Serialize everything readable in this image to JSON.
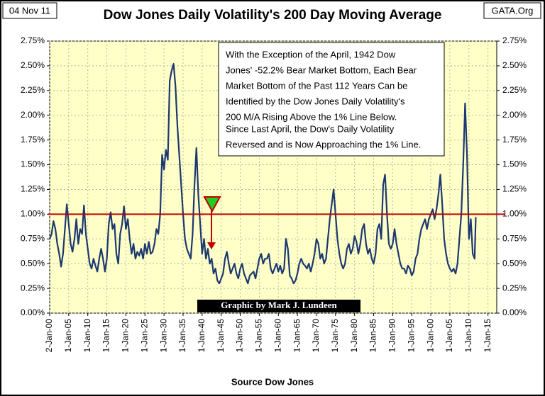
{
  "chart_data": {
    "type": "line",
    "title": "Dow Jones Daily Volatility's 200 Day Moving Average",
    "date_label": "04 Nov 11",
    "source_label": "GATA.Org",
    "x_label": "Source Dow Jones",
    "credit": "Graphic by Mark J. Lundeen",
    "annotation_lines": [
      "With the Exception of the  April, 1942 Dow",
      "Jones' -52.2% Bear Market Bottom, Each Bear",
      "Market Bottom of the Past 112 Years Can be",
      "Identified by the Dow Jones Daily Volatility's",
      "200 M/A Rising Above the 1% Line Below.",
      "Since Last April, the Dow's Daily Volatility",
      "Reversed and is Now Approaching the 1% Line."
    ],
    "color": "#1c3870",
    "reference_line": 1.0,
    "reference_color": "#c00000",
    "grid": true,
    "xlim": [
      1900,
      2017.3
    ],
    "xticks": [
      {
        "value": 1900,
        "label": "2-Jan-00"
      },
      {
        "value": 1905,
        "label": "1-Jan-05"
      },
      {
        "value": 1910,
        "label": "1-Jan-10"
      },
      {
        "value": 1915,
        "label": "1-Jan-15"
      },
      {
        "value": 1920,
        "label": "1-Jan-20"
      },
      {
        "value": 1925,
        "label": "1-Jan-25"
      },
      {
        "value": 1930,
        "label": "1-Jan-30"
      },
      {
        "value": 1935,
        "label": "1-Jan-35"
      },
      {
        "value": 1940,
        "label": "1-Jan-40"
      },
      {
        "value": 1945,
        "label": "1-Jan-45"
      },
      {
        "value": 1950,
        "label": "1-Jan-50"
      },
      {
        "value": 1955,
        "label": "1-Jan-55"
      },
      {
        "value": 1960,
        "label": "1-Jan-60"
      },
      {
        "value": 1965,
        "label": "1-Jan-65"
      },
      {
        "value": 1970,
        "label": "1-Jan-70"
      },
      {
        "value": 1975,
        "label": "1-Jan-75"
      },
      {
        "value": 1980,
        "label": "1-Jan-80"
      },
      {
        "value": 1985,
        "label": "1-Jan-85"
      },
      {
        "value": 1990,
        "label": "1-Jan-90"
      },
      {
        "value": 1995,
        "label": "1-Jan-95"
      },
      {
        "value": 2000,
        "label": "1-Jan-00"
      },
      {
        "value": 2005,
        "label": "1-Jan-05"
      },
      {
        "value": 2010,
        "label": "1-Jan-10"
      },
      {
        "value": 2015,
        "label": "1-Jan-15"
      }
    ],
    "ylim": [
      0,
      2.75
    ],
    "yticks": [
      {
        "value": 0,
        "label": "0.00%"
      },
      {
        "value": 0.25,
        "label": "0.25%"
      },
      {
        "value": 0.5,
        "label": "0.50%"
      },
      {
        "value": 0.75,
        "label": "0.75%"
      },
      {
        "value": 1.0,
        "label": "1.00%"
      },
      {
        "value": 1.25,
        "label": "1.25%"
      },
      {
        "value": 1.5,
        "label": "1.50%"
      },
      {
        "value": 1.75,
        "label": "1.75%"
      },
      {
        "value": 2.0,
        "label": "2.00%"
      },
      {
        "value": 2.25,
        "label": "2.25%"
      },
      {
        "value": 2.5,
        "label": "2.50%"
      },
      {
        "value": 2.75,
        "label": "2.75%"
      }
    ],
    "y2lim": [
      0,
      2.75
    ],
    "y2ticks": [
      {
        "value": 0,
        "label": "0.00%"
      },
      {
        "value": 0.25,
        "label": "0.25%"
      },
      {
        "value": 0.5,
        "label": "0.50%"
      },
      {
        "value": 0.75,
        "label": "0.75%"
      },
      {
        "value": 1.0,
        "label": "1.00%"
      },
      {
        "value": 1.25,
        "label": "1.25%"
      },
      {
        "value": 1.5,
        "label": "1.50%"
      },
      {
        "value": 1.75,
        "label": "1.75%"
      },
      {
        "value": 2.0,
        "label": "2.00%"
      },
      {
        "value": 2.25,
        "label": "2.25%"
      },
      {
        "value": 2.5,
        "label": "2.50%"
      },
      {
        "value": 2.75,
        "label": "2.75%"
      }
    ],
    "x": [
      1900,
      1900.5,
      1901,
      1901.5,
      1902,
      1902.5,
      1903,
      1903.5,
      1904,
      1904.5,
      1905,
      1905.5,
      1906,
      1906.5,
      1907,
      1907.5,
      1908,
      1908.5,
      1909,
      1909.5,
      1910,
      1910.5,
      1911,
      1911.5,
      1912,
      1912.5,
      1913,
      1913.5,
      1914,
      1914.5,
      1915,
      1915.5,
      1916,
      1916.5,
      1917,
      1917.5,
      1918,
      1918.5,
      1919,
      1919.5,
      1920,
      1920.5,
      1921,
      1921.5,
      1922,
      1922.5,
      1923,
      1923.5,
      1924,
      1924.5,
      1925,
      1925.5,
      1926,
      1926.5,
      1927,
      1927.5,
      1928,
      1928.5,
      1929,
      1929.5,
      1930,
      1930.5,
      1931,
      1931.5,
      1932,
      1932.5,
      1933,
      1933.5,
      1934,
      1934.5,
      1935,
      1935.5,
      1936,
      1936.5,
      1937,
      1937.5,
      1938,
      1938.5,
      1939,
      1939.5,
      1940,
      1940.5,
      1941,
      1941.5,
      1942,
      1942.5,
      1943,
      1943.5,
      1944,
      1944.5,
      1945,
      1945.5,
      1946,
      1946.5,
      1947,
      1947.5,
      1948,
      1948.5,
      1949,
      1949.5,
      1950,
      1950.5,
      1951,
      1951.5,
      1952,
      1952.5,
      1953,
      1953.5,
      1954,
      1954.5,
      1955,
      1955.5,
      1956,
      1956.5,
      1957,
      1957.5,
      1958,
      1958.5,
      1959,
      1959.5,
      1960,
      1960.5,
      1961,
      1961.5,
      1962,
      1962.5,
      1963,
      1963.5,
      1964,
      1964.5,
      1965,
      1965.5,
      1966,
      1966.5,
      1967,
      1967.5,
      1968,
      1968.5,
      1969,
      1969.5,
      1970,
      1970.5,
      1971,
      1971.5,
      1972,
      1972.5,
      1973,
      1973.5,
      1974,
      1974.5,
      1975,
      1975.5,
      1976,
      1976.5,
      1977,
      1977.5,
      1978,
      1978.5,
      1979,
      1979.5,
      1980,
      1980.5,
      1981,
      1981.5,
      1982,
      1982.5,
      1983,
      1983.5,
      1984,
      1984.5,
      1985,
      1985.5,
      1986,
      1986.5,
      1987,
      1987.5,
      1988,
      1988.5,
      1989,
      1989.5,
      1990,
      1990.5,
      1991,
      1991.5,
      1992,
      1992.5,
      1993,
      1993.5,
      1994,
      1994.5,
      1995,
      1995.5,
      1996,
      1996.5,
      1997,
      1997.5,
      1998,
      1998.5,
      1999,
      1999.5,
      2000,
      2000.5,
      2001,
      2001.5,
      2002,
      2002.5,
      2003,
      2003.5,
      2004,
      2004.5,
      2005,
      2005.5,
      2006,
      2006.5,
      2007,
      2007.5,
      2008,
      2008.5,
      2009,
      2009.5,
      2010,
      2010.5,
      2011,
      2011.5,
      2011.8
    ],
    "values": [
      0.75,
      0.8,
      0.93,
      0.85,
      0.7,
      0.6,
      0.47,
      0.6,
      0.85,
      1.1,
      0.9,
      0.7,
      0.62,
      0.75,
      0.95,
      0.7,
      0.85,
      0.8,
      1.09,
      0.8,
      0.65,
      0.5,
      0.45,
      0.55,
      0.48,
      0.42,
      0.55,
      0.65,
      0.55,
      0.42,
      0.55,
      0.9,
      1.02,
      0.85,
      0.9,
      0.6,
      0.5,
      0.8,
      0.9,
      1.08,
      0.85,
      0.95,
      0.75,
      0.6,
      0.7,
      0.55,
      0.62,
      0.58,
      0.65,
      0.55,
      0.7,
      0.6,
      0.72,
      0.6,
      0.62,
      0.7,
      0.85,
      0.8,
      1.0,
      1.6,
      1.45,
      1.65,
      1.55,
      2.35,
      2.45,
      2.52,
      2.3,
      1.9,
      1.6,
      1.3,
      1.0,
      0.75,
      0.65,
      0.6,
      0.55,
      0.8,
      1.3,
      1.67,
      1.2,
      0.9,
      0.6,
      0.75,
      0.55,
      0.65,
      0.5,
      0.55,
      0.4,
      0.45,
      0.33,
      0.3,
      0.35,
      0.4,
      0.55,
      0.62,
      0.5,
      0.4,
      0.45,
      0.5,
      0.4,
      0.35,
      0.45,
      0.5,
      0.4,
      0.35,
      0.3,
      0.38,
      0.4,
      0.42,
      0.35,
      0.45,
      0.55,
      0.6,
      0.5,
      0.55,
      0.55,
      0.6,
      0.45,
      0.4,
      0.45,
      0.5,
      0.42,
      0.48,
      0.4,
      0.45,
      0.75,
      0.65,
      0.38,
      0.35,
      0.3,
      0.33,
      0.4,
      0.5,
      0.55,
      0.5,
      0.48,
      0.45,
      0.5,
      0.42,
      0.5,
      0.6,
      0.75,
      0.7,
      0.55,
      0.6,
      0.5,
      0.55,
      0.75,
      0.95,
      1.1,
      1.25,
      1.0,
      0.75,
      0.6,
      0.5,
      0.45,
      0.5,
      0.65,
      0.7,
      0.6,
      0.65,
      0.78,
      0.72,
      0.6,
      0.7,
      0.85,
      0.9,
      0.7,
      0.6,
      0.65,
      0.55,
      0.5,
      0.6,
      0.85,
      0.9,
      0.75,
      1.3,
      1.4,
      1.0,
      0.7,
      0.65,
      0.7,
      0.85,
      0.7,
      0.6,
      0.5,
      0.45,
      0.45,
      0.4,
      0.48,
      0.45,
      0.38,
      0.42,
      0.55,
      0.6,
      0.75,
      0.85,
      0.9,
      0.95,
      0.85,
      0.95,
      1.0,
      1.05,
      0.95,
      1.05,
      1.2,
      1.4,
      1.1,
      0.75,
      0.6,
      0.5,
      0.45,
      0.42,
      0.45,
      0.4,
      0.5,
      0.75,
      1.0,
      1.5,
      2.12,
      1.6,
      0.75,
      0.95,
      0.6,
      0.55,
      0.97
    ]
  }
}
